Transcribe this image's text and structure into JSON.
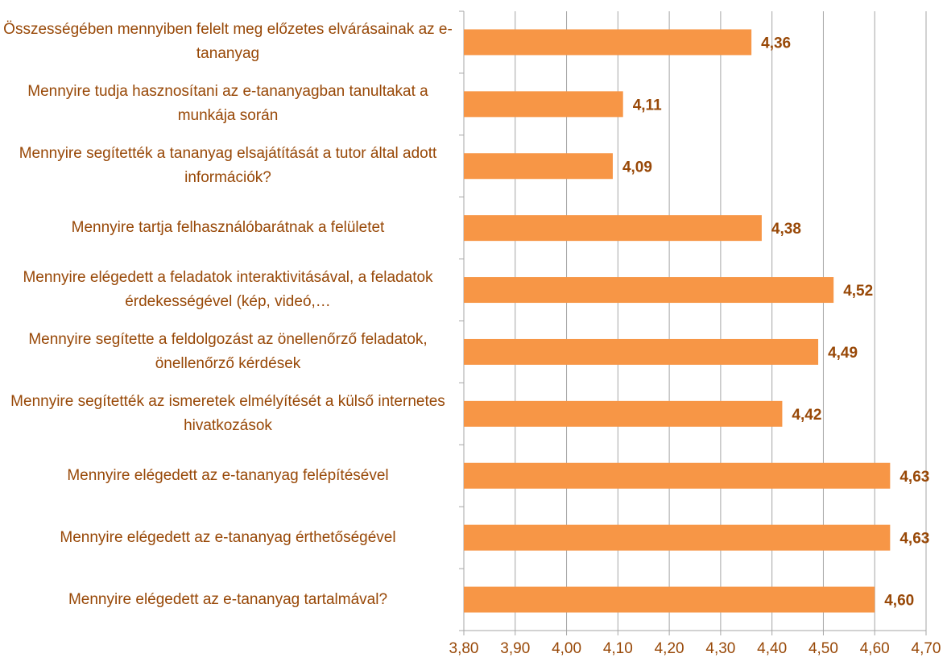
{
  "chart_data": {
    "type": "bar",
    "orientation": "horizontal",
    "categories": [
      "Összességében mennyiben felelt meg előzetes elvárásainak az e-tananyag",
      "Mennyire tudja hasznosítani az e-tananyagban tanultakat a munkája során",
      "Mennyire segítették a tananyag elsajátítását a tutor által adott információk?",
      "Mennyire tartja felhasználóbarátnak a felületet",
      "Mennyire elégedett a feladatok interaktivitásával, a feladatok érdekességével (kép, videó,…",
      "Mennyire segítette a feldolgozást az önellenőrző feladatok, önellenőrző kérdések",
      "Mennyire segítették az ismeretek elmélyítését a külső internetes hivatkozások",
      "Mennyire elégedett az e-tananyag felépítésével",
      "Mennyire elégedett az e-tananyag érthetőségével",
      "Mennyire elégedett az e-tananyag tartalmával?"
    ],
    "values": [
      4.36,
      4.11,
      4.09,
      4.38,
      4.52,
      4.49,
      4.42,
      4.63,
      4.63,
      4.6
    ],
    "value_labels": [
      "4,36",
      "4,11",
      "4,09",
      "4,38",
      "4,52",
      "4,49",
      "4,42",
      "4,63",
      "4,63",
      "4,60"
    ],
    "color": "#f79646",
    "xlim": [
      3.8,
      4.7
    ],
    "xticks": [
      {
        "value": 3.8,
        "label": "3,80"
      },
      {
        "value": 3.9,
        "label": "3,90"
      },
      {
        "value": 4.0,
        "label": "4,00"
      },
      {
        "value": 4.1,
        "label": "4,10"
      },
      {
        "value": 4.2,
        "label": "4,20"
      },
      {
        "value": 4.3,
        "label": "4,30"
      },
      {
        "value": 4.4,
        "label": "4,40"
      },
      {
        "value": 4.5,
        "label": "4,50"
      },
      {
        "value": 4.6,
        "label": "4,60"
      },
      {
        "value": 4.7,
        "label": "4,70"
      }
    ],
    "grid": true
  }
}
